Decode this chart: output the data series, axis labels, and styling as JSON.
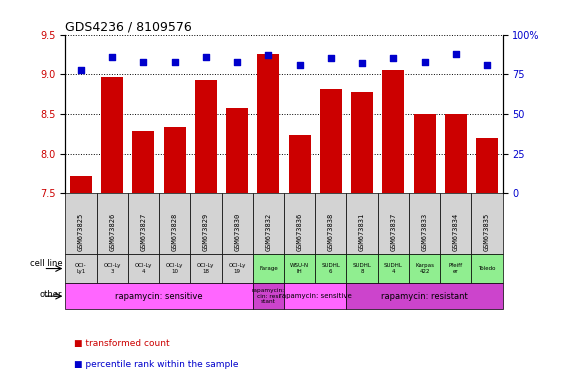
{
  "title": "GDS4236 / 8109576",
  "samples": [
    "GSM673825",
    "GSM673826",
    "GSM673827",
    "GSM673828",
    "GSM673829",
    "GSM673830",
    "GSM673832",
    "GSM673836",
    "GSM673838",
    "GSM673831",
    "GSM673837",
    "GSM673833",
    "GSM673834",
    "GSM673835"
  ],
  "bar_values": [
    7.72,
    8.97,
    8.28,
    8.34,
    8.93,
    8.57,
    9.26,
    8.23,
    8.82,
    8.78,
    9.05,
    8.5,
    8.5,
    8.2
  ],
  "dot_values": [
    78,
    86,
    83,
    83,
    86,
    83,
    87,
    81,
    85,
    82,
    85,
    83,
    88,
    81
  ],
  "ylim_left": [
    7.5,
    9.5
  ],
  "ylim_right": [
    0,
    100
  ],
  "yticks_left": [
    7.5,
    8.0,
    8.5,
    9.0,
    9.5
  ],
  "yticks_right": [
    0,
    25,
    50,
    75,
    100
  ],
  "bar_color": "#cc0000",
  "dot_color": "#0000cc",
  "cell_line_labels": [
    "OCI-\nLy1",
    "OCI-Ly\n3",
    "OCI-Ly\n4",
    "OCI-Ly\n10",
    "OCI-Ly\n18",
    "OCI-Ly\n19",
    "Farage",
    "WSU-N\nIH",
    "SUDHL\n6",
    "SUDHL\n8",
    "SUDHL\n4",
    "Karpas\n422",
    "Pfeiff\ner",
    "Toledo"
  ],
  "cell_line_bg": "#d3d3d3",
  "cell_line_colors": [
    "#d3d3d3",
    "#d3d3d3",
    "#d3d3d3",
    "#d3d3d3",
    "#d3d3d3",
    "#d3d3d3",
    "#90ee90",
    "#90ee90",
    "#90ee90",
    "#90ee90",
    "#90ee90",
    "#90ee90",
    "#90ee90",
    "#90ee90"
  ],
  "sample_bg": "#d3d3d3",
  "other_groups": [
    {
      "label": "rapamycin: sensitive",
      "start": 0,
      "end": 5,
      "color": "#ff66ff"
    },
    {
      "label": "rapamycin:\ncin: resi\nstant",
      "start": 6,
      "end": 6,
      "color": "#cc44cc"
    },
    {
      "label": "rapamycin: sensitive",
      "start": 7,
      "end": 8,
      "color": "#ff66ff"
    },
    {
      "label": "rapamycin: resistant",
      "start": 9,
      "end": 13,
      "color": "#cc44cc"
    }
  ],
  "legend_items": [
    {
      "label": "transformed count",
      "color": "#cc0000"
    },
    {
      "label": "percentile rank within the sample",
      "color": "#0000cc"
    }
  ],
  "bg_color": "#ffffff",
  "tick_label_color_left": "#cc0000",
  "tick_label_color_right": "#0000cc"
}
